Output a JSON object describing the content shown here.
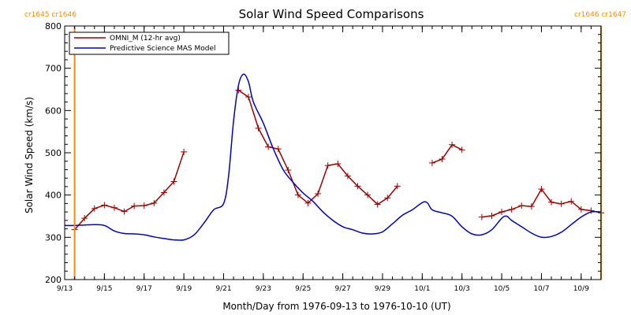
{
  "chart_data": {
    "type": "line",
    "title": "Solar Wind Speed Comparisons",
    "xlabel": "Month/Day from 1976-09-13 to 1976-10-10 (UT)",
    "ylabel": "Solar Wind Speed (km/s)",
    "ylim": [
      200,
      800
    ],
    "xlim": [
      "1976-09-13",
      "1976-10-10"
    ],
    "yticks": [
      200,
      300,
      400,
      500,
      600,
      700,
      800
    ],
    "xticks": [
      {
        "date": "1976-09-13",
        "label": "9/13"
      },
      {
        "date": "1976-09-15",
        "label": "9/15"
      },
      {
        "date": "1976-09-17",
        "label": "9/17"
      },
      {
        "date": "1976-09-19",
        "label": "9/19"
      },
      {
        "date": "1976-09-21",
        "label": "9/21"
      },
      {
        "date": "1976-09-23",
        "label": "9/23"
      },
      {
        "date": "1976-09-25",
        "label": "9/25"
      },
      {
        "date": "1976-09-27",
        "label": "9/27"
      },
      {
        "date": "1976-09-29",
        "label": "9/29"
      },
      {
        "date": "1976-10-01",
        "label": "10/1"
      },
      {
        "date": "1976-10-03",
        "label": "10/3"
      },
      {
        "date": "1976-10-05",
        "label": "10/5"
      },
      {
        "date": "1976-10-07",
        "label": "10/7"
      },
      {
        "date": "1976-10-09",
        "label": "10/9"
      }
    ],
    "legend_position": "top-left",
    "rotation_markers": [
      {
        "date": "1976-09-13 12:00",
        "label": "cr1645 cr1646",
        "side": "left",
        "color": "#ff8c00"
      },
      {
        "date": "1976-10-10 00:00",
        "label": "cr1646 cr1647",
        "side": "right",
        "color": "#ff8c00"
      }
    ],
    "series": [
      {
        "name": "OMNI_M (12-hr avg)",
        "color": "#a00000",
        "marker": "plus",
        "segments": [
          [
            [
              "1976-09-13 12:00",
              318
            ],
            [
              "1976-09-14 00:00",
              345
            ],
            [
              "1976-09-14 12:00",
              368
            ],
            [
              "1976-09-15 00:00",
              376
            ],
            [
              "1976-09-15 12:00",
              370
            ],
            [
              "1976-09-16 00:00",
              361
            ],
            [
              "1976-09-16 12:00",
              374
            ],
            [
              "1976-09-17 00:00",
              375
            ],
            [
              "1976-09-17 12:00",
              381
            ],
            [
              "1976-09-18 00:00",
              406
            ],
            [
              "1976-09-18 12:00",
              432
            ],
            [
              "1976-09-19 00:00",
              502
            ]
          ],
          [
            [
              "1976-09-21 18:00",
              648
            ],
            [
              "1976-09-22 06:00",
              632
            ],
            [
              "1976-09-22 18:00",
              558
            ],
            [
              "1976-09-23 06:00",
              514
            ],
            [
              "1976-09-23 18:00",
              509
            ],
            [
              "1976-09-24 06:00",
              459
            ],
            [
              "1976-09-24 18:00",
              400
            ],
            [
              "1976-09-25 06:00",
              381
            ],
            [
              "1976-09-25 18:00",
              403
            ],
            [
              "1976-09-26 06:00",
              470
            ],
            [
              "1976-09-26 18:00",
              474
            ],
            [
              "1976-09-27 06:00",
              445
            ],
            [
              "1976-09-27 18:00",
              421
            ],
            [
              "1976-09-28 06:00",
              400
            ],
            [
              "1976-09-28 18:00",
              378
            ],
            [
              "1976-09-29 06:00",
              393
            ],
            [
              "1976-09-29 18:00",
              421
            ]
          ],
          [
            [
              "1976-10-01 12:00",
              476
            ],
            [
              "1976-10-02 00:00",
              485
            ],
            [
              "1976-10-02 12:00",
              519
            ],
            [
              "1976-10-03 00:00",
              507
            ]
          ],
          [
            [
              "1976-10-04 00:00",
              348
            ],
            [
              "1976-10-04 12:00",
              351
            ],
            [
              "1976-10-05 00:00",
              360
            ],
            [
              "1976-10-05 12:00",
              366
            ],
            [
              "1976-10-06 00:00",
              375
            ],
            [
              "1976-10-06 12:00",
              373
            ],
            [
              "1976-10-07 00:00",
              414
            ],
            [
              "1976-10-07 12:00",
              383
            ],
            [
              "1976-10-08 00:00",
              379
            ],
            [
              "1976-10-08 12:00",
              385
            ],
            [
              "1976-10-09 00:00",
              366
            ],
            [
              "1976-10-09 12:00",
              363
            ],
            [
              "1976-10-10 00:00",
              358
            ]
          ]
        ]
      },
      {
        "name": "Predictive Science MAS Model",
        "color": "#0000cc",
        "marker": "none",
        "points": [
          [
            "1976-09-13 00:00",
            328
          ],
          [
            "1976-09-13 12:00",
            328
          ],
          [
            "1976-09-14 00:00",
            329
          ],
          [
            "1976-09-14 12:00",
            330
          ],
          [
            "1976-09-15 00:00",
            328
          ],
          [
            "1976-09-15 12:00",
            315
          ],
          [
            "1976-09-16 00:00",
            309
          ],
          [
            "1976-09-16 12:00",
            308
          ],
          [
            "1976-09-17 00:00",
            306
          ],
          [
            "1976-09-17 12:00",
            301
          ],
          [
            "1976-09-18 00:00",
            297
          ],
          [
            "1976-09-18 12:00",
            294
          ],
          [
            "1976-09-19 00:00",
            294
          ],
          [
            "1976-09-19 12:00",
            305
          ],
          [
            "1976-09-20 00:00",
            333
          ],
          [
            "1976-09-20 12:00",
            365
          ],
          [
            "1976-09-21 00:00",
            380
          ],
          [
            "1976-09-21 06:00",
            445
          ],
          [
            "1976-09-21 12:00",
            575
          ],
          [
            "1976-09-21 18:00",
            660
          ],
          [
            "1976-09-22 00:00",
            686
          ],
          [
            "1976-09-22 06:00",
            668
          ],
          [
            "1976-09-22 12:00",
            620
          ],
          [
            "1976-09-23 00:00",
            570
          ],
          [
            "1976-09-23 12:00",
            510
          ],
          [
            "1976-09-24 00:00",
            460
          ],
          [
            "1976-09-24 12:00",
            430
          ],
          [
            "1976-09-25 00:00",
            405
          ],
          [
            "1976-09-25 12:00",
            385
          ],
          [
            "1976-09-26 00:00",
            360
          ],
          [
            "1976-09-26 12:00",
            340
          ],
          [
            "1976-09-27 00:00",
            325
          ],
          [
            "1976-09-27 12:00",
            318
          ],
          [
            "1976-09-28 00:00",
            310
          ],
          [
            "1976-09-28 12:00",
            308
          ],
          [
            "1976-09-29 00:00",
            313
          ],
          [
            "1976-09-29 12:00",
            332
          ],
          [
            "1976-09-30 00:00",
            352
          ],
          [
            "1976-09-30 12:00",
            365
          ],
          [
            "1976-10-01 00:00",
            382
          ],
          [
            "1976-10-01 06:00",
            382
          ],
          [
            "1976-10-01 12:00",
            365
          ],
          [
            "1976-10-02 00:00",
            358
          ],
          [
            "1976-10-02 12:00",
            350
          ],
          [
            "1976-10-03 00:00",
            325
          ],
          [
            "1976-10-03 12:00",
            308
          ],
          [
            "1976-10-04 00:00",
            306
          ],
          [
            "1976-10-04 12:00",
            318
          ],
          [
            "1976-10-05 00:00",
            345
          ],
          [
            "1976-10-05 06:00",
            350
          ],
          [
            "1976-10-05 12:00",
            340
          ],
          [
            "1976-10-06 00:00",
            325
          ],
          [
            "1976-10-06 12:00",
            310
          ],
          [
            "1976-10-07 00:00",
            300
          ],
          [
            "1976-10-07 12:00",
            302
          ],
          [
            "1976-10-08 00:00",
            312
          ],
          [
            "1976-10-08 12:00",
            330
          ],
          [
            "1976-10-09 00:00",
            348
          ],
          [
            "1976-10-09 12:00",
            360
          ],
          [
            "1976-10-10 00:00",
            360
          ]
        ]
      }
    ]
  }
}
